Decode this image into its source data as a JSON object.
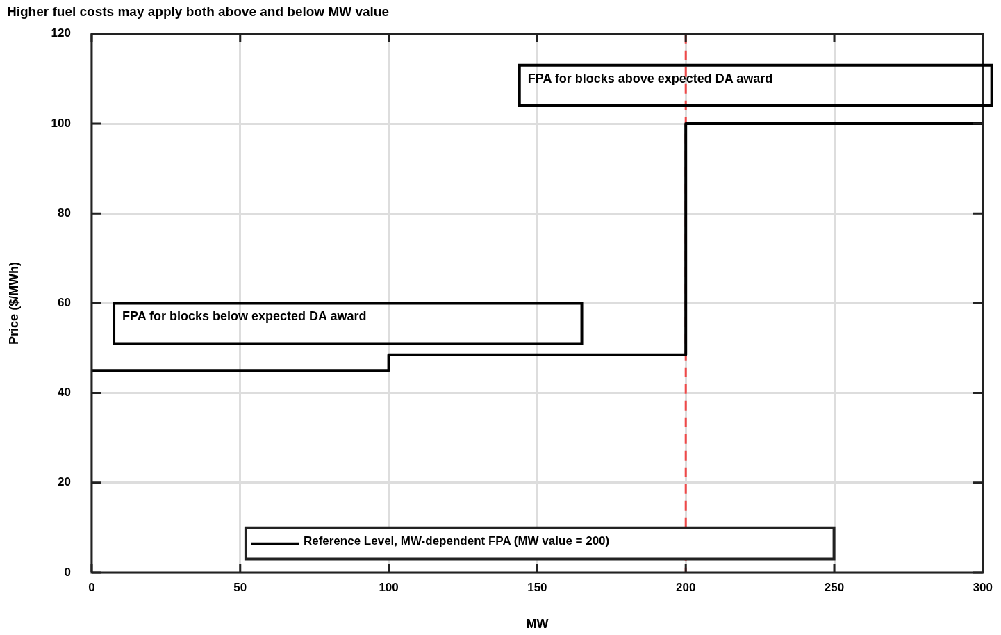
{
  "chart_data": {
    "type": "step",
    "title": "Higher fuel costs may apply both above and below MW value",
    "xlabel": "MW",
    "ylabel": "Price ($/MWh)",
    "x": [
      0,
      100,
      200,
      300
    ],
    "series": [
      {
        "name": "Reference Level, MW-dependent FPA (MW value = 200)",
        "color": "#000000",
        "values": [
          45,
          48.5,
          100,
          100
        ]
      }
    ],
    "xlim": [
      0,
      300
    ],
    "xticks": [
      0,
      50,
      100,
      150,
      200,
      250,
      300
    ],
    "ylim": [
      0,
      120
    ],
    "yticks": [
      0,
      20,
      40,
      60,
      80,
      100,
      120
    ],
    "ref_lines": [
      {
        "axis": "x",
        "value": 200,
        "color": "#f04848",
        "line_style": "dashed"
      }
    ],
    "annotations": [
      "FPA for blocks below expected DA award",
      "FPA for blocks above expected DA award"
    ],
    "grid": true,
    "legend": "bottom"
  }
}
